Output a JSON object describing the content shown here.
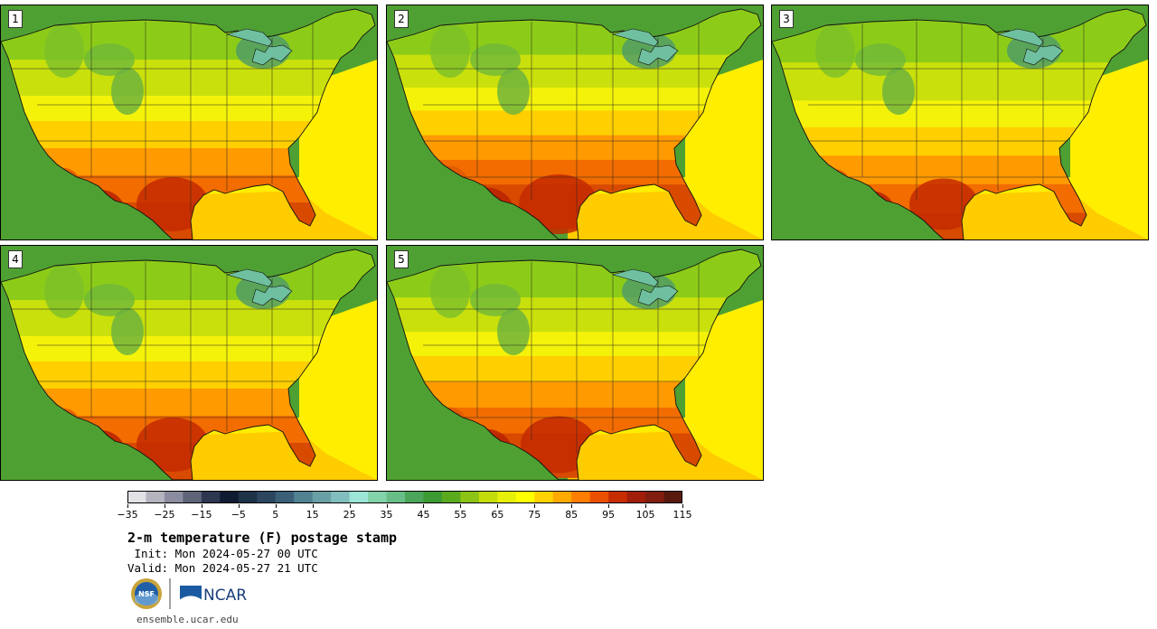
{
  "panels": [
    {
      "label": "1",
      "heat": 1.0
    },
    {
      "label": "2",
      "heat": 1.1
    },
    {
      "label": "3",
      "heat": 0.95
    },
    {
      "label": "4",
      "heat": 1.0
    },
    {
      "label": "5",
      "heat": 1.05
    }
  ],
  "colorbar": {
    "colors": [
      "#e1e1e6",
      "#b4b4be",
      "#8c8ca0",
      "#5f6478",
      "#2d3750",
      "#0f1c32",
      "#1e3248",
      "#2d465f",
      "#3c5f78",
      "#508291",
      "#69a0a5",
      "#82bebe",
      "#9be6d7",
      "#82d2aa",
      "#69be87",
      "#4ba55a",
      "#3c9b32",
      "#5aaa1e",
      "#8cc314",
      "#c3dc0a",
      "#e6f00a",
      "#ffff00",
      "#ffd200",
      "#ffaa00",
      "#ff7d00",
      "#eb5000",
      "#c82d00",
      "#a01e0a",
      "#821e0f",
      "#5a190f"
    ],
    "tick_labels": [
      "−35",
      "−25",
      "−15",
      "−5",
      "5",
      "15",
      "25",
      "35",
      "45",
      "55",
      "65",
      "75",
      "85",
      "95",
      "105",
      "115"
    ]
  },
  "title": "2-m temperature (F) postage stamp",
  "init_line": " Init: Mon 2024-05-27 00 UTC",
  "valid_line": "Valid: Mon 2024-05-27 21 UTC",
  "logos": {
    "nsf": "NSF",
    "ncar": "NCAR"
  },
  "footer_url": "ensemble.ucar.edu"
}
